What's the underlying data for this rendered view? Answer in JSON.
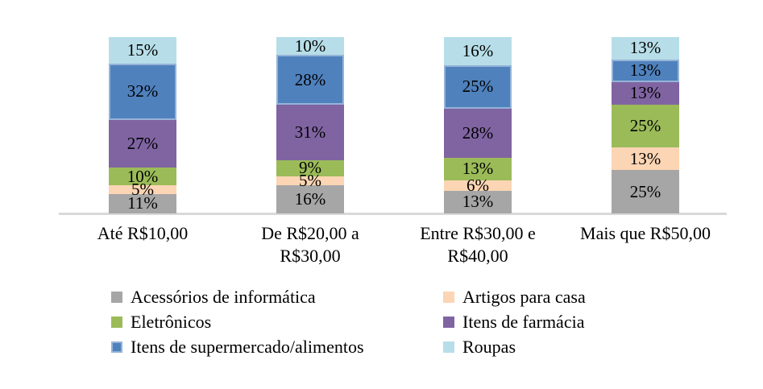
{
  "chart_data": {
    "type": "bar",
    "subtype": "stacked-100-percent-column",
    "title": "",
    "xlabel": "",
    "ylabel": "",
    "grid": false,
    "legend_position": "bottom",
    "categories": [
      "Até R$10,00",
      "De R$20,00 a R$30,00",
      "Entre R$30,00 e R$40,00",
      "Mais que R$50,00"
    ],
    "series": [
      {
        "name": "Acessórios de informática",
        "color": "#a6a6a6",
        "border_color": null,
        "values": [
          11,
          16,
          13,
          25
        ]
      },
      {
        "name": "Artigos para casa",
        "color": "#fcd5b4",
        "border_color": null,
        "values": [
          5,
          5,
          6,
          13
        ]
      },
      {
        "name": "Eletrônicos",
        "color": "#9bbb59",
        "border_color": null,
        "values": [
          10,
          9,
          13,
          25
        ]
      },
      {
        "name": "Itens de farmácia",
        "color": "#8064a2",
        "border_color": null,
        "values": [
          27,
          31,
          28,
          13
        ]
      },
      {
        "name": "Itens de supermercado/alimentos",
        "color": "#4f81bd",
        "border_color": "#95b3d7",
        "values": [
          32,
          28,
          25,
          13
        ]
      },
      {
        "name": "Roupas",
        "color": "#b7dee8",
        "border_color": null,
        "values": [
          15,
          10,
          16,
          13
        ]
      }
    ],
    "data_label_format": "{value}%",
    "axis_line_color": "#d9d9d9",
    "text_color": "#000000",
    "background_color": "#ffffff"
  }
}
